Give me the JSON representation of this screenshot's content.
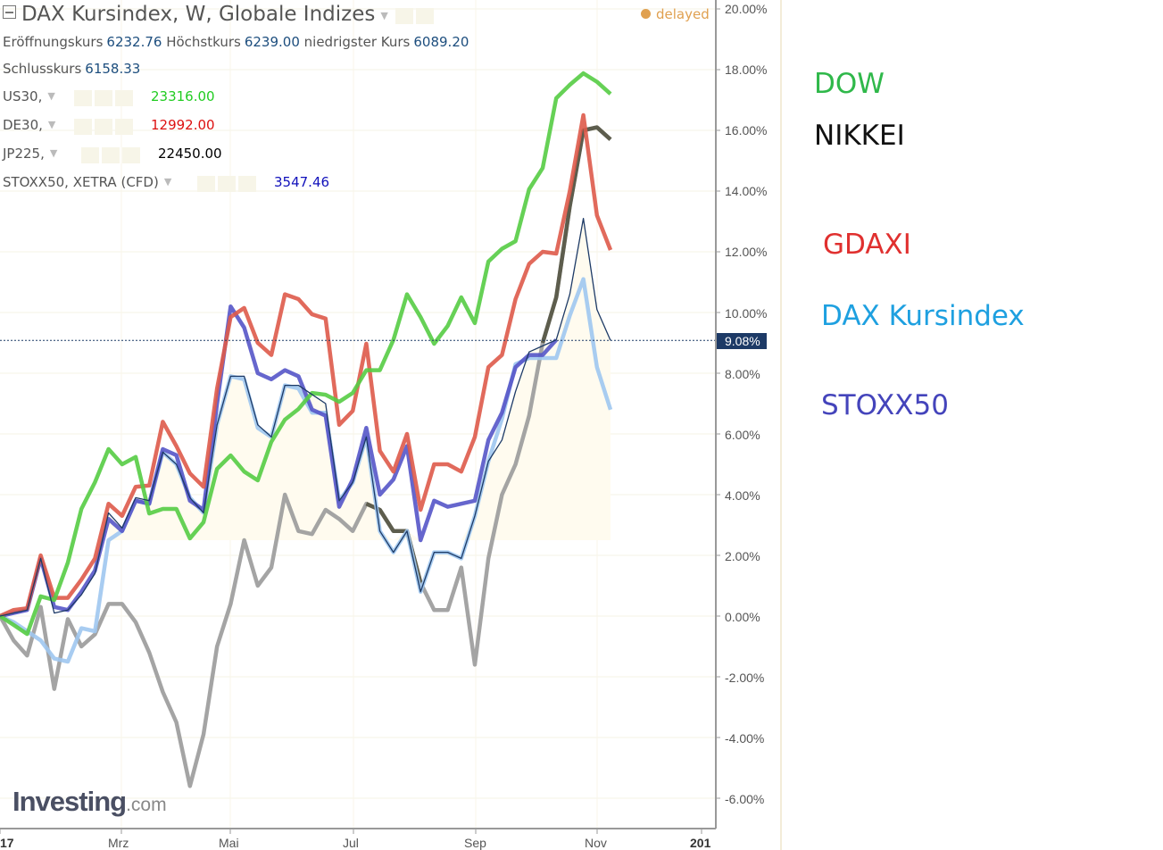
{
  "header": {
    "title": "DAX Kursindex, W, Globale Indizes",
    "ohlc": [
      {
        "label": "Eröffnungskurs",
        "value": "6232.76"
      },
      {
        "label": "Höchstkurs",
        "value": "6239.00"
      },
      {
        "label": "niedrigster Kurs",
        "value": "6089.20"
      },
      {
        "label": "Schlusskurs",
        "value": "6158.33"
      }
    ],
    "symbols": [
      {
        "label": "US30,",
        "value": "23316.00",
        "color": "#22cc22"
      },
      {
        "label": "DE30,",
        "value": "12992.00",
        "color": "#dd1111"
      },
      {
        "label": "JP225,",
        "value": "22450.00",
        "color": "#000000"
      },
      {
        "label": "STOXX50, XETRA (CFD)",
        "value": "3547.46",
        "color": "#1111bb"
      }
    ],
    "status": "delayed",
    "status_color": "#e0a050"
  },
  "price_tag": "9.08%",
  "logo": {
    "main": "Investing",
    "suffix": ".com"
  },
  "annotations": [
    {
      "text": "DOW",
      "color": "#2fb84a"
    },
    {
      "text": "NIKKEI",
      "color": "#111111"
    },
    {
      "text": "GDAXI",
      "color": "#e0302f"
    },
    {
      "text": "DAX Kursindex",
      "color": "#1ea0e0"
    },
    {
      "text": "STOXX50",
      "color": "#4444bb"
    }
  ],
  "chart_data": {
    "type": "line",
    "y_axis": {
      "range": [
        -7,
        20
      ],
      "ticks": [
        "20.00%",
        "18.00%",
        "16.00%",
        "14.00%",
        "12.00%",
        "10.00%",
        "8.00%",
        "6.00%",
        "4.00%",
        "2.00%",
        "0.00%",
        "-2.00%",
        "-4.00%",
        "-6.00%"
      ],
      "unit": "%",
      "position": "right"
    },
    "x_axis": {
      "ticks": [
        "17",
        "Mrz",
        "Mai",
        "Jul",
        "Sep",
        "Nov",
        "201"
      ]
    },
    "grid": true,
    "current_value": 9.08,
    "x": [
      "2016-12-30",
      "2017-01-06",
      "2017-01-13",
      "2017-01-20",
      "2017-01-27",
      "2017-02-03",
      "2017-02-10",
      "2017-02-17",
      "2017-02-24",
      "2017-03-03",
      "2017-03-10",
      "2017-03-17",
      "2017-03-24",
      "2017-03-31",
      "2017-04-07",
      "2017-04-14",
      "2017-04-21",
      "2017-04-28",
      "2017-05-05",
      "2017-05-12",
      "2017-05-19",
      "2017-05-26",
      "2017-06-02",
      "2017-06-09",
      "2017-06-16",
      "2017-06-23",
      "2017-06-30",
      "2017-07-07",
      "2017-07-14",
      "2017-07-21",
      "2017-07-28",
      "2017-08-04",
      "2017-08-11",
      "2017-08-18",
      "2017-08-25",
      "2017-09-01",
      "2017-09-08",
      "2017-09-15",
      "2017-09-22",
      "2017-09-29",
      "2017-10-06",
      "2017-10-13",
      "2017-10-20",
      "2017-10-27",
      "2017-11-03",
      "2017-11-10"
    ],
    "series": [
      {
        "color": "#1d3a66",
        "style": "area",
        "fill": "#fffbef",
        "values": [
          0,
          0.1,
          0.2,
          1.9,
          0.1,
          0.2,
          0.7,
          1.4,
          3.4,
          2.9,
          3.9,
          3.8,
          5.4,
          5.0,
          3.9,
          3.4,
          6.3,
          7.9,
          7.9,
          6.3,
          5.9,
          7.6,
          7.6,
          7.3,
          7.0,
          3.8,
          4.4,
          5.9,
          2.8,
          2.1,
          2.8,
          0.8,
          2.1,
          2.1,
          1.9,
          3.3,
          5.1,
          5.8,
          7.4,
          8.7,
          8.9,
          9.1,
          10.6,
          13.1,
          10.1,
          9.08
        ]
      },
      {
        "color": "#9ec6f0",
        "values": [
          0,
          -0.2,
          -0.5,
          -0.8,
          -1.4,
          -1.5,
          -0.4,
          -0.5,
          2.5,
          2.8,
          3.8,
          3.7,
          5.4,
          5.0,
          3.9,
          3.4,
          6.3,
          7.9,
          7.8,
          6.2,
          5.9,
          7.6,
          7.5,
          6.7,
          6.7,
          3.8,
          4.4,
          5.9,
          2.8,
          2.1,
          2.8,
          0.8,
          2.1,
          2.1,
          1.9,
          3.3,
          5.1,
          6.5,
          8.3,
          8.5,
          8.5,
          8.5,
          9.9,
          11.1,
          8.2,
          6.8
        ]
      },
      {
        "color": "#9a9a9a",
        "values": [
          0,
          -0.8,
          -1.3,
          0.3,
          -2.4,
          -0.1,
          -1.0,
          -0.6,
          0.4,
          0.4,
          -0.2,
          -1.2,
          -2.5,
          -3.5,
          -5.6,
          -3.9,
          -1.0,
          0.4,
          2.5,
          1.0,
          1.6,
          4.0,
          2.8,
          2.7,
          3.5,
          3.2,
          2.8,
          3.7,
          3.5,
          2.8,
          2.8,
          1.1,
          0.2,
          0.2,
          1.6,
          -1.6,
          1.9,
          4.0,
          5.0,
          6.6,
          9.0,
          10.5,
          13.5,
          16.0,
          16.1,
          15.7
        ]
      },
      {
        "color": "#555544",
        "values": [
          null,
          null,
          null,
          null,
          null,
          null,
          null,
          null,
          null,
          null,
          null,
          null,
          null,
          null,
          null,
          null,
          null,
          null,
          null,
          null,
          null,
          null,
          null,
          null,
          null,
          null,
          null,
          3.7,
          3.5,
          2.8,
          2.8,
          1.1,
          null,
          null,
          null,
          null,
          null,
          null,
          null,
          null,
          9.0,
          10.5,
          13.5,
          16.0,
          16.1,
          15.7
        ]
      },
      {
        "color": "#5555c8",
        "values": [
          0,
          0.1,
          0.2,
          1.9,
          0.3,
          0.2,
          0.8,
          1.5,
          3.2,
          2.8,
          3.8,
          3.7,
          5.5,
          5.3,
          3.8,
          3.5,
          7.0,
          10.2,
          9.5,
          8.0,
          7.8,
          8.1,
          7.9,
          6.8,
          6.6,
          3.6,
          4.5,
          6.2,
          4.0,
          4.5,
          5.6,
          2.5,
          3.8,
          3.6,
          3.7,
          3.8,
          5.8,
          6.7,
          8.2,
          8.6,
          8.6,
          9.1,
          null,
          null,
          null,
          null
        ]
      },
      {
        "color": "#de5a4a",
        "values": [
          0,
          0.2,
          0.26,
          2.0,
          0.6,
          0.6,
          1.2,
          1.9,
          3.7,
          3.3,
          4.26,
          4.3,
          6.4,
          5.6,
          4.7,
          4.26,
          7.5,
          9.85,
          10.15,
          9.0,
          8.6,
          10.6,
          10.44,
          9.94,
          9.8,
          6.3,
          6.76,
          8.97,
          5.44,
          4.76,
          6.0,
          3.5,
          5.0,
          5.0,
          4.76,
          5.9,
          8.2,
          8.6,
          10.44,
          11.6,
          12.0,
          11.94,
          14.0,
          16.5,
          13.2,
          12.06
        ]
      },
      {
        "color": "#55cc44",
        "values": [
          0,
          -0.29,
          -0.59,
          0.65,
          0.53,
          1.76,
          3.53,
          4.41,
          5.5,
          5.0,
          5.24,
          3.38,
          3.53,
          3.53,
          2.56,
          3.09,
          4.85,
          5.29,
          4.76,
          4.47,
          5.74,
          6.47,
          6.82,
          7.35,
          7.29,
          7.06,
          7.35,
          8.1,
          8.1,
          9.1,
          10.6,
          9.85,
          8.97,
          9.56,
          10.5,
          9.65,
          11.68,
          12.1,
          12.35,
          14.06,
          14.76,
          17.06,
          17.5,
          17.88,
          17.6,
          17.2
        ]
      }
    ]
  }
}
